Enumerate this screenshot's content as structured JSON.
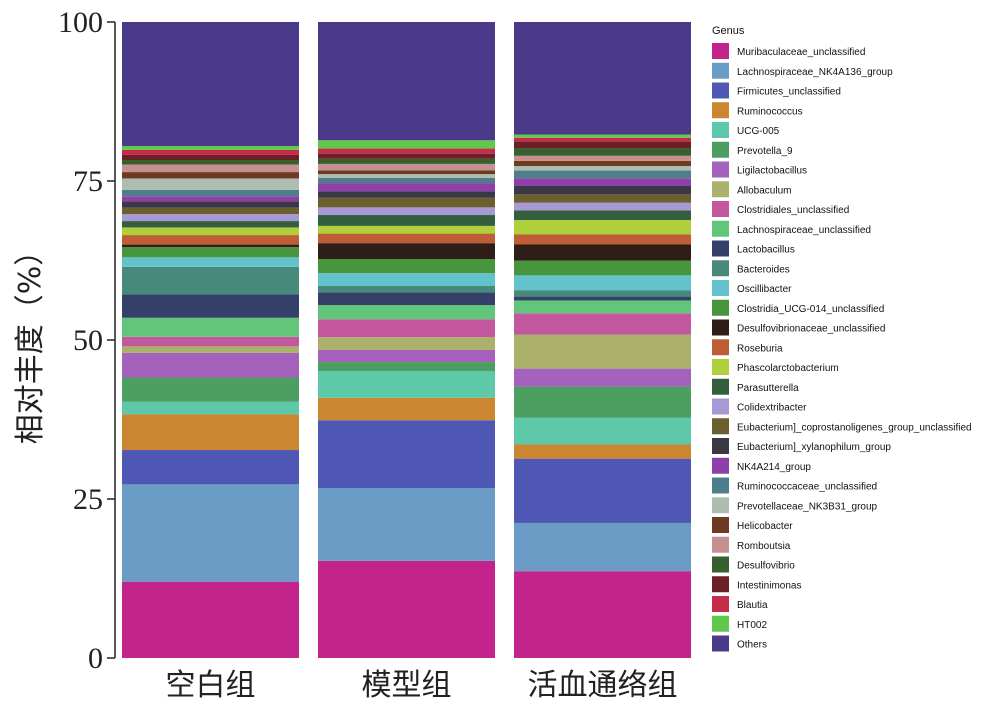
{
  "chart_data": {
    "type": "bar",
    "stacked": true,
    "categories": [
      "空白组",
      "模型组",
      "活血通络组"
    ],
    "ylabel": "相对丰度（%）",
    "ylim": [
      0,
      100
    ],
    "yticks": [
      0,
      25,
      50,
      75,
      100
    ],
    "legend_title": "Genus",
    "legend_position": "right",
    "series": [
      {
        "name": "Muribaculaceae_unclassified",
        "color": "#c2248b",
        "values": [
          12.0,
          15.2,
          13.5
        ]
      },
      {
        "name": "Lachnospiraceae_NK4A136_group",
        "color": "#6a9cc6",
        "values": [
          15.3,
          11.4,
          7.5
        ]
      },
      {
        "name": "Firmicutes_unclassified",
        "color": "#4f57b5",
        "values": [
          5.4,
          10.6,
          10.0
        ]
      },
      {
        "name": "Ruminococcus",
        "color": "#cc8530",
        "values": [
          5.6,
          3.5,
          2.2
        ]
      },
      {
        "name": "UCG-005",
        "color": "#5ec9a8",
        "values": [
          2.0,
          4.2,
          4.2
        ]
      },
      {
        "name": "Prevotella_9",
        "color": "#4c9f60",
        "values": [
          3.8,
          1.4,
          4.8
        ]
      },
      {
        "name": "Ligilactobacillus",
        "color": "#a462bd",
        "values": [
          3.9,
          1.9,
          2.8
        ]
      },
      {
        "name": "Allobaculum",
        "color": "#abb06a",
        "values": [
          1.0,
          2.0,
          5.3
        ]
      },
      {
        "name": "Clostridiales_unclassified",
        "color": "#c4589f",
        "values": [
          1.5,
          2.8,
          3.3
        ]
      },
      {
        "name": "Lachnospiraceae_unclassified",
        "color": "#61c67a",
        "values": [
          3.0,
          2.2,
          2.0
        ]
      },
      {
        "name": "Lactobacillus",
        "color": "#343f6a",
        "values": [
          3.7,
          2.0,
          0.6
        ]
      },
      {
        "name": "Bacteroides",
        "color": "#478a7b",
        "values": [
          4.3,
          1.0,
          1.0
        ]
      },
      {
        "name": "Oscillibacter",
        "color": "#62c3cd",
        "values": [
          1.5,
          2.0,
          2.3
        ]
      },
      {
        "name": "Clostridia_UCG-014_unclassified",
        "color": "#47963d",
        "values": [
          1.6,
          2.2,
          2.3
        ]
      },
      {
        "name": "Desulfovibrionaceae_unclassified",
        "color": "#2f1d17",
        "values": [
          0.4,
          2.5,
          2.5
        ]
      },
      {
        "name": "Roseburia",
        "color": "#bf5d34",
        "values": [
          1.5,
          1.5,
          1.6
        ]
      },
      {
        "name": "Phascolarctobacterium",
        "color": "#afcf3b",
        "values": [
          1.2,
          1.2,
          2.2
        ]
      },
      {
        "name": "Parasutterella",
        "color": "#345f3f",
        "values": [
          1.0,
          1.7,
          1.5
        ]
      },
      {
        "name": "Colidextribacter",
        "color": "#a799d4",
        "values": [
          1.1,
          1.2,
          1.2
        ]
      },
      {
        "name": "Eubacterium]_coprostanoligenes_group_unclassified",
        "color": "#6b5f2e",
        "values": [
          1.0,
          1.5,
          1.3
        ]
      },
      {
        "name": "Eubacterium]_xylanophilum_group",
        "color": "#3a3845",
        "values": [
          1.0,
          1.0,
          1.3
        ]
      },
      {
        "name": "NK4A214_group",
        "color": "#8e40a8",
        "values": [
          0.8,
          1.3,
          1.2
        ]
      },
      {
        "name": "Ruminococcaceae_unclassified",
        "color": "#4d7e8a",
        "values": [
          1.0,
          0.8,
          1.2
        ]
      },
      {
        "name": "Prevotellaceae_NK3B31_group",
        "color": "#aebdb1",
        "values": [
          1.8,
          0.6,
          0.7
        ]
      },
      {
        "name": "Helicobacter",
        "color": "#6e3a22",
        "values": [
          1.0,
          0.6,
          0.8
        ]
      },
      {
        "name": "Romboutsia",
        "color": "#c79090",
        "values": [
          1.2,
          1.0,
          0.8
        ]
      },
      {
        "name": "Desulfovibrio",
        "color": "#3a5f2e",
        "values": [
          0.7,
          0.8,
          1.2
        ]
      },
      {
        "name": "Intestinimonas",
        "color": "#6b1f27",
        "values": [
          0.8,
          0.8,
          1.0
        ]
      },
      {
        "name": "Blautia",
        "color": "#c42c4a",
        "values": [
          0.8,
          0.8,
          0.6
        ]
      },
      {
        "name": "HT002",
        "color": "#60c84a",
        "values": [
          0.6,
          1.3,
          0.5
        ]
      },
      {
        "name": "Others",
        "color": "#4b3a8a",
        "values": [
          19.5,
          18.5,
          17.5
        ]
      }
    ]
  }
}
